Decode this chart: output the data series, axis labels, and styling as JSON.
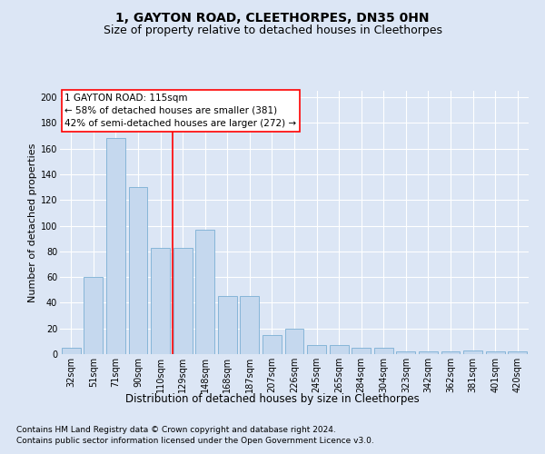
{
  "title1": "1, GAYTON ROAD, CLEETHORPES, DN35 0HN",
  "title2": "Size of property relative to detached houses in Cleethorpes",
  "xlabel": "Distribution of detached houses by size in Cleethorpes",
  "ylabel": "Number of detached properties",
  "categories": [
    "32sqm",
    "51sqm",
    "71sqm",
    "90sqm",
    "110sqm",
    "129sqm",
    "148sqm",
    "168sqm",
    "187sqm",
    "207sqm",
    "226sqm",
    "245sqm",
    "265sqm",
    "284sqm",
    "304sqm",
    "323sqm",
    "342sqm",
    "362sqm",
    "381sqm",
    "401sqm",
    "420sqm"
  ],
  "values": [
    5,
    60,
    168,
    130,
    83,
    83,
    97,
    45,
    45,
    15,
    20,
    7,
    7,
    5,
    5,
    2,
    2,
    2,
    3,
    2,
    2
  ],
  "bar_color": "#c5d8ee",
  "bar_edge_color": "#7bafd4",
  "red_line_x": 4.55,
  "annotation_text": "1 GAYTON ROAD: 115sqm\n← 58% of detached houses are smaller (381)\n42% of semi-detached houses are larger (272) →",
  "footnote1": "Contains HM Land Registry data © Crown copyright and database right 2024.",
  "footnote2": "Contains public sector information licensed under the Open Government Licence v3.0.",
  "ylim": [
    0,
    205
  ],
  "yticks": [
    0,
    20,
    40,
    60,
    80,
    100,
    120,
    140,
    160,
    180,
    200
  ],
  "bg_color": "#dce6f5",
  "plot_bg_color": "#dce6f5",
  "grid_color": "#ffffff",
  "title1_fontsize": 10,
  "title2_fontsize": 9,
  "xlabel_fontsize": 8.5,
  "ylabel_fontsize": 8,
  "tick_fontsize": 7,
  "annot_fontsize": 7.5,
  "footnote_fontsize": 6.5
}
